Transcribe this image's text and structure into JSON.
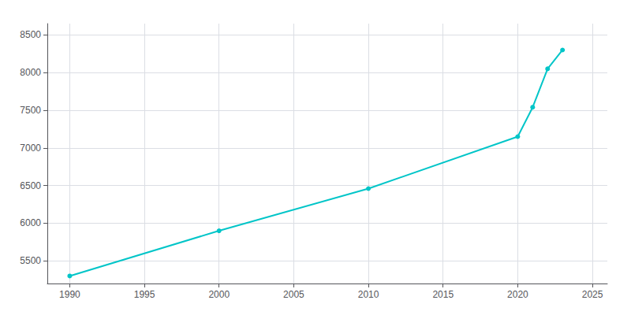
{
  "chart_data": {
    "type": "line",
    "x": [
      1990,
      2000,
      2010,
      2020,
      2021,
      2022,
      2023
    ],
    "values": [
      5300,
      5900,
      6460,
      7150,
      7540,
      8050,
      8300
    ],
    "color": "#00C5C8",
    "marker": "circle",
    "xlim": [
      1988.5,
      2026
    ],
    "ylim": [
      5200,
      8650
    ],
    "xticks": [
      1990,
      1995,
      2000,
      2005,
      2010,
      2015,
      2020,
      2025
    ],
    "yticks": [
      5500,
      6000,
      6500,
      7000,
      7500,
      8000,
      8500
    ],
    "grid": true
  }
}
